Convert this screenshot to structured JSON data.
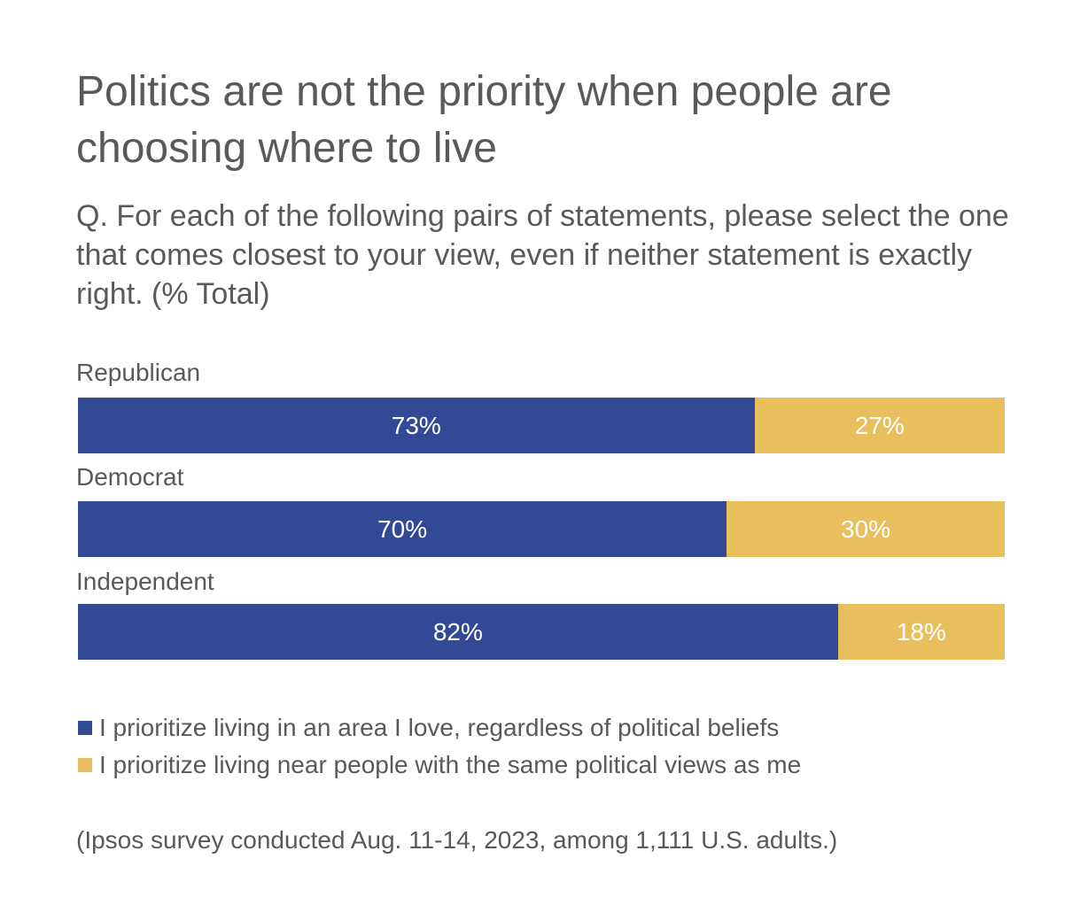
{
  "chart_data": {
    "type": "bar",
    "orientation": "horizontal",
    "stacked": true,
    "percent": true,
    "title": "Politics are not the priority when people are choosing where to live",
    "subtitle": "Q. For each of the following pairs of statements, please select the one that comes closest to your view, even if neither statement is exactly right. (% Total)",
    "categories": [
      "Republican",
      "Democrat",
      "Independent"
    ],
    "series": [
      {
        "name": "I prioritize living in an area I love, regardless of political beliefs",
        "values": [
          73,
          70,
          82
        ],
        "labels": [
          "73%",
          "70%",
          "82%"
        ],
        "color": "#324A96"
      },
      {
        "name": "I prioritize living near people with the same political views as me",
        "values": [
          27,
          30,
          18
        ],
        "labels": [
          "27%",
          "30%",
          "18%"
        ],
        "color": "#E9BF5E"
      }
    ],
    "xlim": [
      0,
      100
    ],
    "legend": "bottom-left",
    "grid": false,
    "note": "(Ipsos survey conducted Aug. 11-14, 2023, among 1,111 U.S. adults.)"
  }
}
